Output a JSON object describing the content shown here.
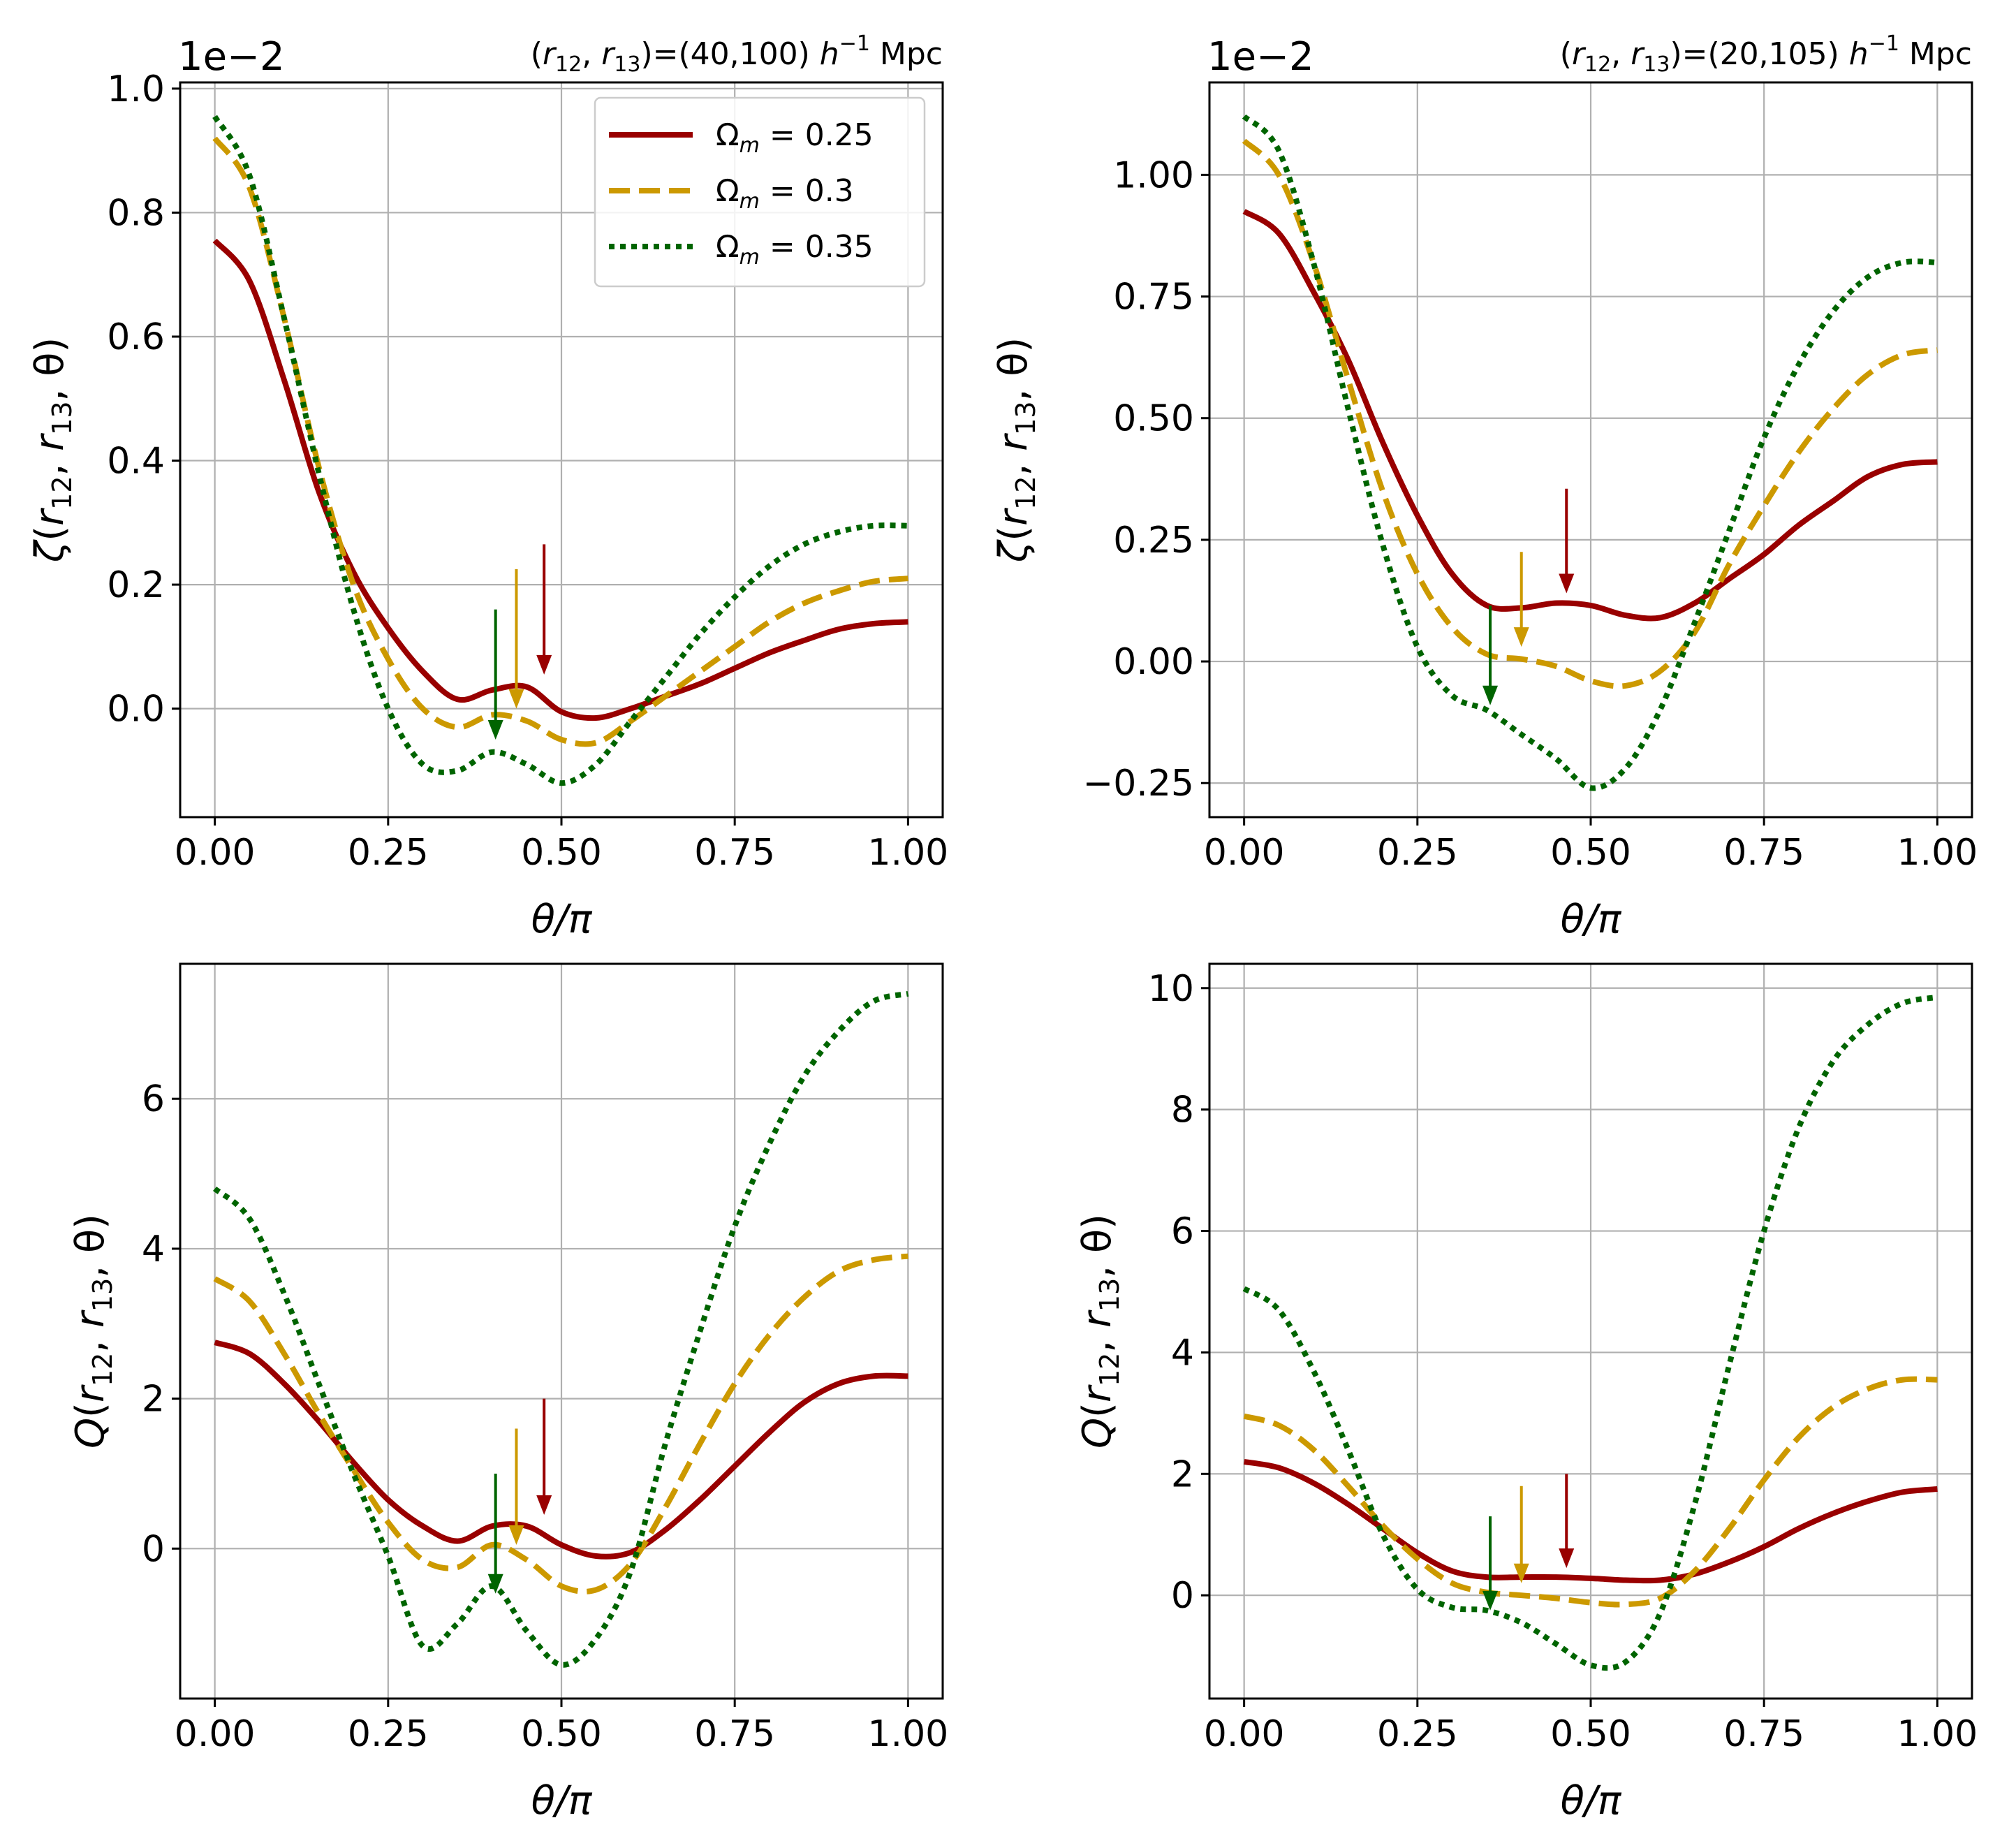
{
  "colors": {
    "red": "#990000",
    "gold": "#CC9900",
    "green": "#006400",
    "grid": "#b0b0b0"
  },
  "legend": {
    "location": "upper right of top-left panel",
    "entries": [
      {
        "label": "Ω_m = 0.25",
        "math_sym": "Ω",
        "math_sub": "m",
        "math_rest": " = 0.25",
        "color": "#990000",
        "style": "solid"
      },
      {
        "label": "Ω_m = 0.3",
        "math_sym": "Ω",
        "math_sub": "m",
        "math_rest": " = 0.3",
        "color": "#CC9900",
        "style": "dashed"
      },
      {
        "label": "Ω_m = 0.35",
        "math_sym": "Ω",
        "math_sub": "m",
        "math_rest": " = 0.35",
        "color": "#006400",
        "style": "dotted"
      }
    ]
  },
  "chart_data": [
    {
      "type": "line",
      "panel": "top-left",
      "title": "(r12, r13)=(40,100) h^-1 Mpc",
      "title_parts": {
        "open": "(",
        "r": "r",
        "s12": "12",
        "comma": ", ",
        "s13": "13",
        "close": ")=(40,100) ",
        "h": "h",
        "exp": "−1",
        "unit": " Mpc"
      },
      "offset_text": "1e−2",
      "xlabel": "θ/π",
      "ylabel": "ζ(r12, r13, θ)",
      "ylabel_parts": {
        "sym": "ζ",
        "open": "(",
        "r": "r",
        "s12": "12",
        "comma": ", ",
        "s13": "13",
        "tail": ", θ)"
      },
      "xlim": [
        -0.05,
        1.05
      ],
      "ylim": [
        -0.175,
        1.01
      ],
      "xticks": [
        0,
        0.25,
        0.5,
        0.75,
        1.0
      ],
      "xtick_labels": [
        "0.00",
        "0.25",
        "0.50",
        "0.75",
        "1.00"
      ],
      "yticks": [
        0,
        0.2,
        0.4,
        0.6,
        0.8,
        1.0
      ],
      "ytick_labels": [
        "0.0",
        "0.2",
        "0.4",
        "0.6",
        "0.8",
        "1.0"
      ],
      "series": [
        {
          "name": "Ω_m = 0.25",
          "x": [
            0,
            0.05,
            0.1,
            0.15,
            0.2,
            0.25,
            0.3,
            0.35,
            0.4,
            0.45,
            0.5,
            0.55,
            0.6,
            0.65,
            0.7,
            0.75,
            0.8,
            0.85,
            0.9,
            0.95,
            1.0
          ],
          "y": [
            0.755,
            0.69,
            0.53,
            0.35,
            0.22,
            0.13,
            0.06,
            0.015,
            0.03,
            0.035,
            -0.005,
            -0.015,
            0.0,
            0.02,
            0.04,
            0.065,
            0.09,
            0.11,
            0.128,
            0.137,
            0.14
          ]
        },
        {
          "name": "Ω_m = 0.3",
          "x": [
            0,
            0.05,
            0.1,
            0.15,
            0.2,
            0.25,
            0.3,
            0.35,
            0.4,
            0.45,
            0.5,
            0.55,
            0.6,
            0.65,
            0.7,
            0.75,
            0.8,
            0.85,
            0.9,
            0.95,
            1.0
          ],
          "y": [
            0.92,
            0.84,
            0.63,
            0.39,
            0.2,
            0.08,
            0.0,
            -0.03,
            -0.01,
            -0.02,
            -0.05,
            -0.055,
            -0.02,
            0.02,
            0.06,
            0.1,
            0.14,
            0.17,
            0.19,
            0.205,
            0.21
          ]
        },
        {
          "name": "Ω_m = 0.35",
          "x": [
            0,
            0.05,
            0.1,
            0.15,
            0.2,
            0.25,
            0.3,
            0.35,
            0.4,
            0.45,
            0.5,
            0.55,
            0.6,
            0.65,
            0.7,
            0.75,
            0.8,
            0.85,
            0.9,
            0.95,
            1.0
          ],
          "y": [
            0.955,
            0.86,
            0.63,
            0.38,
            0.16,
            0.0,
            -0.09,
            -0.1,
            -0.07,
            -0.09,
            -0.12,
            -0.09,
            -0.02,
            0.05,
            0.12,
            0.18,
            0.23,
            0.265,
            0.285,
            0.295,
            0.295
          ]
        }
      ],
      "arrows": [
        {
          "series": "Ω_m = 0.25",
          "x": 0.475,
          "y_start": 0.265,
          "y_end": 0.055
        },
        {
          "series": "Ω_m = 0.3",
          "x": 0.435,
          "y_start": 0.225,
          "y_end": 0.0
        },
        {
          "series": "Ω_m = 0.35",
          "x": 0.405,
          "y_start": 0.16,
          "y_end": -0.05
        }
      ]
    },
    {
      "type": "line",
      "panel": "top-right",
      "title": "(r12, r13)=(20,105) h^-1 Mpc",
      "title_parts": {
        "open": "(",
        "r": "r",
        "s12": "12",
        "comma": ", ",
        "s13": "13",
        "close": ")=(20,105) ",
        "h": "h",
        "exp": "−1",
        "unit": " Mpc"
      },
      "offset_text": "1e−2",
      "xlabel": "θ/π",
      "ylabel": "ζ(r12, r13, θ)",
      "ylabel_parts": {
        "sym": "ζ",
        "open": "(",
        "r": "r",
        "s12": "12",
        "comma": ", ",
        "s13": "13",
        "tail": ", θ)"
      },
      "xlim": [
        -0.05,
        1.05
      ],
      "ylim": [
        -0.32,
        1.19
      ],
      "xticks": [
        0,
        0.25,
        0.5,
        0.75,
        1.0
      ],
      "xtick_labels": [
        "0.00",
        "0.25",
        "0.50",
        "0.75",
        "1.00"
      ],
      "yticks": [
        -0.25,
        0,
        0.25,
        0.5,
        0.75,
        1.0
      ],
      "ytick_labels": [
        "−0.25",
        "0.00",
        "0.25",
        "0.50",
        "0.75",
        "1.00"
      ],
      "series": [
        {
          "name": "Ω_m = 0.25",
          "x": [
            0,
            0.05,
            0.1,
            0.15,
            0.2,
            0.25,
            0.3,
            0.35,
            0.4,
            0.45,
            0.5,
            0.55,
            0.6,
            0.65,
            0.7,
            0.75,
            0.8,
            0.85,
            0.9,
            0.95,
            1.0
          ],
          "y": [
            0.925,
            0.88,
            0.76,
            0.62,
            0.45,
            0.3,
            0.18,
            0.115,
            0.11,
            0.12,
            0.115,
            0.095,
            0.09,
            0.12,
            0.17,
            0.22,
            0.28,
            0.33,
            0.38,
            0.405,
            0.41
          ]
        },
        {
          "name": "Ω_m = 0.3",
          "x": [
            0,
            0.05,
            0.1,
            0.15,
            0.2,
            0.25,
            0.3,
            0.35,
            0.4,
            0.45,
            0.5,
            0.55,
            0.6,
            0.65,
            0.7,
            0.75,
            0.8,
            0.85,
            0.9,
            0.95,
            1.0
          ],
          "y": [
            1.07,
            1.0,
            0.82,
            0.58,
            0.35,
            0.18,
            0.07,
            0.015,
            0.005,
            -0.01,
            -0.04,
            -0.05,
            -0.02,
            0.06,
            0.2,
            0.32,
            0.43,
            0.52,
            0.59,
            0.63,
            0.64
          ]
        },
        {
          "name": "Ω_m = 0.35",
          "x": [
            0,
            0.05,
            0.1,
            0.15,
            0.2,
            0.25,
            0.3,
            0.35,
            0.4,
            0.45,
            0.5,
            0.55,
            0.6,
            0.65,
            0.7,
            0.75,
            0.8,
            0.85,
            0.9,
            0.95,
            1.0
          ],
          "y": [
            1.12,
            1.05,
            0.82,
            0.52,
            0.24,
            0.03,
            -0.07,
            -0.1,
            -0.15,
            -0.2,
            -0.26,
            -0.22,
            -0.1,
            0.08,
            0.27,
            0.46,
            0.61,
            0.72,
            0.79,
            0.82,
            0.82
          ]
        }
      ],
      "arrows": [
        {
          "series": "Ω_m = 0.25",
          "x": 0.465,
          "y_start": 0.355,
          "y_end": 0.14
        },
        {
          "series": "Ω_m = 0.3",
          "x": 0.4,
          "y_start": 0.225,
          "y_end": 0.03
        },
        {
          "series": "Ω_m = 0.35",
          "x": 0.355,
          "y_start": 0.115,
          "y_end": -0.09
        }
      ]
    },
    {
      "type": "line",
      "panel": "bottom-left",
      "xlabel": "θ/π",
      "ylabel": "Q(r12, r13, θ)",
      "ylabel_parts": {
        "sym": "Q",
        "open": "(",
        "r": "r",
        "s12": "12",
        "comma": ", ",
        "s13": "13",
        "tail": ", θ)"
      },
      "xlim": [
        -0.05,
        1.05
      ],
      "ylim": [
        -2.0,
        7.8
      ],
      "xticks": [
        0,
        0.25,
        0.5,
        0.75,
        1.0
      ],
      "xtick_labels": [
        "0.00",
        "0.25",
        "0.50",
        "0.75",
        "1.00"
      ],
      "yticks": [
        0,
        2,
        4,
        6
      ],
      "ytick_labels": [
        "0",
        "2",
        "4",
        "6"
      ],
      "series": [
        {
          "name": "Ω_m = 0.25",
          "x": [
            0,
            0.05,
            0.1,
            0.15,
            0.2,
            0.25,
            0.3,
            0.35,
            0.4,
            0.45,
            0.5,
            0.55,
            0.6,
            0.65,
            0.7,
            0.75,
            0.8,
            0.85,
            0.9,
            0.95,
            1.0
          ],
          "y": [
            2.75,
            2.6,
            2.2,
            1.7,
            1.15,
            0.65,
            0.3,
            0.1,
            0.3,
            0.3,
            0.05,
            -0.1,
            -0.05,
            0.25,
            0.65,
            1.1,
            1.55,
            1.95,
            2.2,
            2.3,
            2.3
          ]
        },
        {
          "name": "Ω_m = 0.3",
          "x": [
            0,
            0.05,
            0.1,
            0.15,
            0.2,
            0.25,
            0.3,
            0.35,
            0.4,
            0.45,
            0.5,
            0.55,
            0.6,
            0.65,
            0.7,
            0.75,
            0.8,
            0.85,
            0.9,
            0.95,
            1.0
          ],
          "y": [
            3.6,
            3.3,
            2.6,
            1.8,
            1.05,
            0.35,
            -0.15,
            -0.25,
            0.05,
            -0.15,
            -0.5,
            -0.55,
            -0.2,
            0.55,
            1.4,
            2.2,
            2.85,
            3.35,
            3.7,
            3.85,
            3.9
          ]
        },
        {
          "name": "Ω_m = 0.35",
          "x": [
            0,
            0.05,
            0.1,
            0.15,
            0.2,
            0.25,
            0.3,
            0.35,
            0.4,
            0.45,
            0.5,
            0.55,
            0.6,
            0.65,
            0.7,
            0.75,
            0.8,
            0.85,
            0.9,
            0.95,
            1.0
          ],
          "y": [
            4.8,
            4.4,
            3.4,
            2.2,
            1.0,
            -0.1,
            -1.3,
            -1.0,
            -0.5,
            -1.1,
            -1.55,
            -1.2,
            -0.3,
            1.4,
            2.9,
            4.3,
            5.4,
            6.3,
            6.9,
            7.3,
            7.4
          ]
        }
      ],
      "arrows": [
        {
          "series": "Ω_m = 0.25",
          "x": 0.475,
          "y_start": 2.0,
          "y_end": 0.45
        },
        {
          "series": "Ω_m = 0.3",
          "x": 0.435,
          "y_start": 1.6,
          "y_end": 0.05
        },
        {
          "series": "Ω_m = 0.35",
          "x": 0.405,
          "y_start": 1.0,
          "y_end": -0.6
        }
      ]
    },
    {
      "type": "line",
      "panel": "bottom-right",
      "xlabel": "θ/π",
      "ylabel": "Q(r12, r13, θ)",
      "ylabel_parts": {
        "sym": "Q",
        "open": "(",
        "r": "r",
        "s12": "12",
        "comma": ", ",
        "s13": "13",
        "tail": ", θ)"
      },
      "xlim": [
        -0.05,
        1.05
      ],
      "ylim": [
        -1.7,
        10.4
      ],
      "xticks": [
        0,
        0.25,
        0.5,
        0.75,
        1.0
      ],
      "xtick_labels": [
        "0.00",
        "0.25",
        "0.50",
        "0.75",
        "1.00"
      ],
      "yticks": [
        0,
        2,
        4,
        6,
        8,
        10
      ],
      "ytick_labels": [
        "0",
        "2",
        "4",
        "6",
        "8",
        "10"
      ],
      "series": [
        {
          "name": "Ω_m = 0.25",
          "x": [
            0,
            0.05,
            0.1,
            0.15,
            0.2,
            0.25,
            0.3,
            0.35,
            0.4,
            0.45,
            0.5,
            0.55,
            0.6,
            0.65,
            0.7,
            0.75,
            0.8,
            0.85,
            0.9,
            0.95,
            1.0
          ],
          "y": [
            2.2,
            2.1,
            1.85,
            1.5,
            1.1,
            0.7,
            0.4,
            0.3,
            0.3,
            0.3,
            0.28,
            0.25,
            0.25,
            0.35,
            0.55,
            0.8,
            1.1,
            1.35,
            1.55,
            1.7,
            1.75
          ]
        },
        {
          "name": "Ω_m = 0.3",
          "x": [
            0,
            0.05,
            0.1,
            0.15,
            0.2,
            0.25,
            0.3,
            0.35,
            0.4,
            0.45,
            0.5,
            0.55,
            0.6,
            0.65,
            0.7,
            0.75,
            0.8,
            0.85,
            0.9,
            0.95,
            1.0
          ],
          "y": [
            2.95,
            2.8,
            2.4,
            1.8,
            1.15,
            0.6,
            0.2,
            0.05,
            0.0,
            -0.05,
            -0.12,
            -0.15,
            -0.05,
            0.4,
            1.1,
            1.9,
            2.6,
            3.1,
            3.4,
            3.55,
            3.55
          ]
        },
        {
          "name": "Ω_m = 0.35",
          "x": [
            0,
            0.05,
            0.1,
            0.15,
            0.2,
            0.25,
            0.3,
            0.35,
            0.4,
            0.45,
            0.5,
            0.55,
            0.6,
            0.65,
            0.7,
            0.75,
            0.8,
            0.85,
            0.9,
            0.95,
            1.0
          ],
          "y": [
            5.05,
            4.7,
            3.7,
            2.4,
            1.0,
            0.1,
            -0.2,
            -0.25,
            -0.45,
            -0.8,
            -1.15,
            -1.1,
            -0.3,
            1.5,
            3.8,
            6.0,
            7.7,
            8.8,
            9.4,
            9.75,
            9.85
          ]
        }
      ],
      "arrows": [
        {
          "series": "Ω_m = 0.25",
          "x": 0.465,
          "y_start": 2.0,
          "y_end": 0.45
        },
        {
          "series": "Ω_m = 0.3",
          "x": 0.4,
          "y_start": 1.8,
          "y_end": 0.2
        },
        {
          "series": "Ω_m = 0.35",
          "x": 0.355,
          "y_start": 1.3,
          "y_end": -0.25
        }
      ]
    }
  ]
}
